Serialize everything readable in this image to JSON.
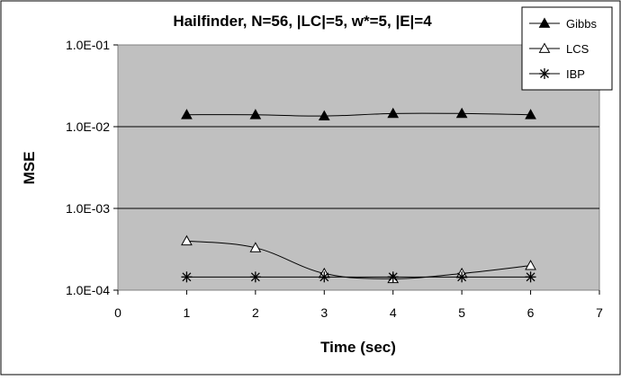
{
  "chart_data": {
    "type": "line",
    "title": "Hailfinder, N=56, |LC|=5, w*=5, |E|=4",
    "xlabel": "Time (sec)",
    "ylabel": "MSE",
    "xlim": [
      0,
      7
    ],
    "ylim": [
      0.0001,
      0.1
    ],
    "yscale": "log",
    "x_ticks": [
      0,
      1,
      2,
      3,
      4,
      5,
      6,
      7
    ],
    "y_ticks": [
      {
        "value": 0.0001,
        "label": "1.0E-04"
      },
      {
        "value": 0.001,
        "label": "1.0E-03"
      },
      {
        "value": 0.01,
        "label": "1.0E-02"
      },
      {
        "value": 0.1,
        "label": "1.0E-01"
      }
    ],
    "grid": "horizontal",
    "legend_position": "top-right",
    "plot_background": "#c0c0c0",
    "series": [
      {
        "name": "Gibbs",
        "marker": "filled-triangle",
        "x": [
          1,
          2,
          3,
          4,
          5,
          6
        ],
        "values": [
          0.014,
          0.014,
          0.0135,
          0.0145,
          0.0145,
          0.014
        ]
      },
      {
        "name": "LCS",
        "marker": "open-triangle",
        "x": [
          1,
          2,
          3,
          4,
          5,
          6
        ],
        "values": [
          0.0004,
          0.00033,
          0.00016,
          0.000138,
          0.00016,
          0.0002
        ]
      },
      {
        "name": "IBP",
        "marker": "star",
        "x": [
          1,
          2,
          3,
          4,
          5,
          6
        ],
        "values": [
          0.000145,
          0.000145,
          0.000145,
          0.000145,
          0.000145,
          0.000145
        ]
      }
    ]
  }
}
